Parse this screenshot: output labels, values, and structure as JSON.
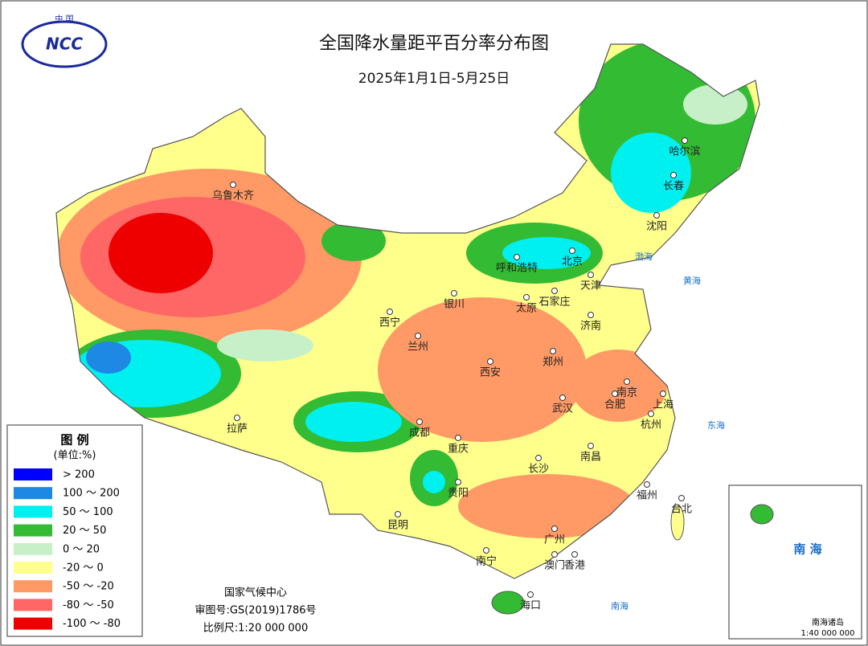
{
  "header": {
    "logo_top": "中 国",
    "logo": "NCC",
    "title": "全国降水量距平百分率分布图",
    "subtitle": "2025年1月1日-5月25日"
  },
  "legend": {
    "title": "图 例",
    "unit": "(单位:%)",
    "items": [
      {
        "label": "> 200",
        "color": "#0000ff"
      },
      {
        "label": "100 ～ 200",
        "color": "#1e88e5"
      },
      {
        "label": "50 ～ 100",
        "color": "#00f0f0"
      },
      {
        "label": "20 ～ 50",
        "color": "#33bb33"
      },
      {
        "label": "0 ～ 20",
        "color": "#c8f0c8"
      },
      {
        "label": "-20 ～ 0",
        "color": "#ffff8c"
      },
      {
        "label": "-50 ～ -20",
        "color": "#ff9966"
      },
      {
        "label": "-80 ～ -50",
        "color": "#ff6666"
      },
      {
        "label": "-100 ～ -80",
        "color": "#ee0000"
      }
    ]
  },
  "cities": [
    "乌鲁木齐",
    "哈尔滨",
    "长春",
    "沈阳",
    "呼和浩特",
    "北京",
    "天津",
    "石家庄",
    "太原",
    "济南",
    "银川",
    "西宁",
    "兰州",
    "西安",
    "郑州",
    "南京",
    "合肥",
    "上海",
    "杭州",
    "武汉",
    "成都",
    "重庆",
    "拉萨",
    "长沙",
    "南昌",
    "福州",
    "台北",
    "贵阳",
    "昆明",
    "南宁",
    "广州",
    "澳门",
    "香港",
    "海口"
  ],
  "seas": [
    "渤海",
    "黄海",
    "东海",
    "南海"
  ],
  "footer": {
    "org": "国家气候中心",
    "approval": "审图号:GS(2019)1786号",
    "scale": "比例尺:1:20 000 000"
  },
  "inset": {
    "sea": "南 海",
    "islands": "南海诸岛",
    "scale": "1:40 000 000"
  }
}
